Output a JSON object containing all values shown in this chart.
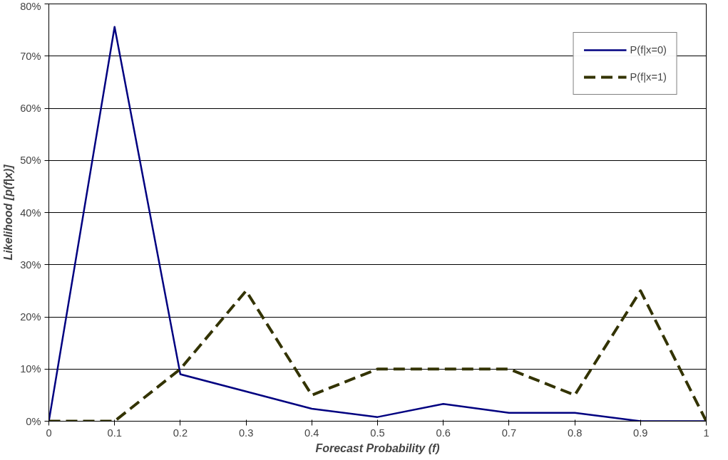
{
  "chart_data": {
    "type": "line",
    "xlabel": "Forecast Probability (f)",
    "ylabel": "Likelihood [p(f|x)]",
    "x": [
      0,
      0.1,
      0.2,
      0.3,
      0.4,
      0.5,
      0.6,
      0.7,
      0.8,
      0.9,
      1
    ],
    "series": [
      {
        "name": "P(f|x=0)",
        "color": "#000080",
        "line_style": "solid",
        "values": [
          0,
          75.6,
          9,
          5.7,
          2.4,
          0.8,
          3.3,
          1.6,
          1.6,
          0,
          0
        ]
      },
      {
        "name": "P(f|x=1)",
        "color": "#333300",
        "line_style": "dashed",
        "values": [
          0,
          0,
          10,
          25,
          5,
          10,
          10,
          10,
          5,
          25,
          0
        ]
      }
    ],
    "xlim": [
      0,
      1
    ],
    "ylim": [
      0,
      80
    ],
    "xticks": [
      0,
      0.1,
      0.2,
      0.3,
      0.4,
      0.5,
      0.6,
      0.7,
      0.8,
      0.9,
      1
    ],
    "yticks": [
      {
        "value": 0,
        "label": "0%"
      },
      {
        "value": 10,
        "label": "10%"
      },
      {
        "value": 20,
        "label": "20%"
      },
      {
        "value": 30,
        "label": "30%"
      },
      {
        "value": 40,
        "label": "40%"
      },
      {
        "value": 50,
        "label": "50%"
      },
      {
        "value": 60,
        "label": "60%"
      },
      {
        "value": 70,
        "label": "70%"
      },
      {
        "value": 80,
        "label": "80%"
      }
    ],
    "grid": "y",
    "legend": "top right",
    "marker": "none"
  }
}
